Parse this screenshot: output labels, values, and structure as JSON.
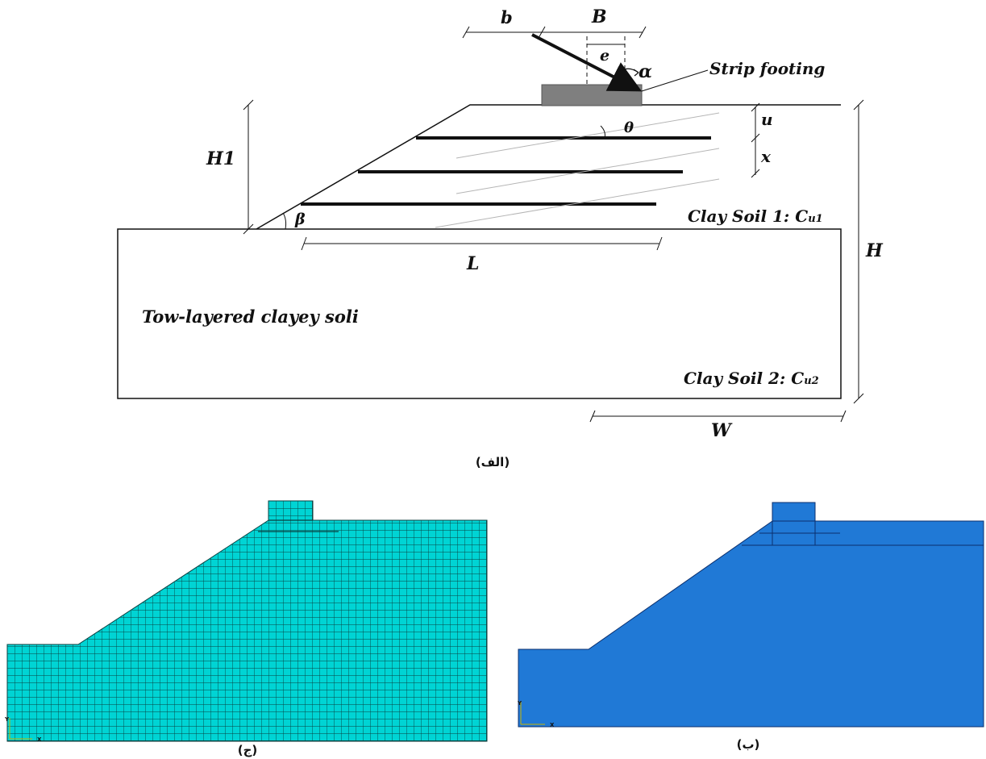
{
  "diagram_a": {
    "labels": {
      "b": "b",
      "B": "B",
      "e": "e",
      "alpha": "α",
      "strip_footing": "Strip footing",
      "H1": "H1",
      "u": "u",
      "theta": "θ",
      "x": "x",
      "beta": "β",
      "clay1": "Clay Soil 1: C",
      "clay1_sub": "u1",
      "H": "H",
      "L": "L",
      "two_layered": "Tow-layered clayey soli",
      "clay2": "Clay Soil 2: C",
      "clay2_sub": "u2",
      "W": "W"
    },
    "reinforcement_layer_count": 3,
    "caption": "(الف)"
  },
  "panel_geometry": {
    "caption": "(ب)",
    "fill_color": "#2079d6",
    "axis_labels": {
      "x": "X",
      "y": "Y"
    }
  },
  "panel_mesh": {
    "caption": "(ج)",
    "fill_color": "#00d0d0",
    "axis_labels": {
      "x": "X",
      "y": "Y"
    }
  }
}
